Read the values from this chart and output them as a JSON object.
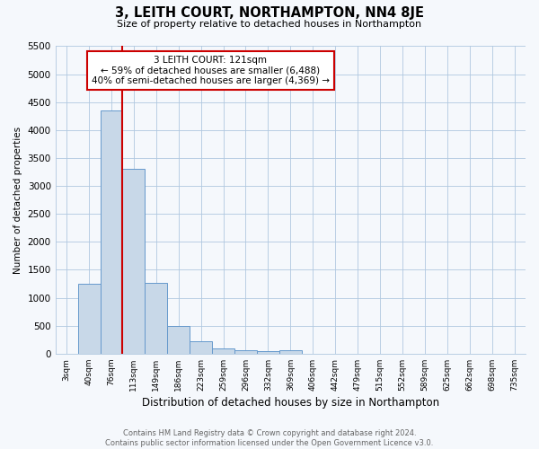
{
  "title": "3, LEITH COURT, NORTHAMPTON, NN4 8JE",
  "subtitle": "Size of property relative to detached houses in Northampton",
  "xlabel": "Distribution of detached houses by size in Northampton",
  "ylabel": "Number of detached properties",
  "footnote": "Contains HM Land Registry data © Crown copyright and database right 2024.\nContains public sector information licensed under the Open Government Licence v3.0.",
  "bar_labels": [
    "3sqm",
    "40sqm",
    "76sqm",
    "113sqm",
    "149sqm",
    "186sqm",
    "223sqm",
    "259sqm",
    "296sqm",
    "332sqm",
    "369sqm",
    "406sqm",
    "442sqm",
    "479sqm",
    "515sqm",
    "552sqm",
    "589sqm",
    "625sqm",
    "662sqm",
    "698sqm",
    "735sqm"
  ],
  "bar_values": [
    0,
    1250,
    4350,
    3300,
    1260,
    490,
    215,
    90,
    60,
    45,
    60,
    0,
    0,
    0,
    0,
    0,
    0,
    0,
    0,
    0,
    0
  ],
  "bar_color": "#c8d8e8",
  "bar_edge_color": "#6699cc",
  "property_line_color": "#cc0000",
  "annotation_text": "3 LEITH COURT: 121sqm\n← 59% of detached houses are smaller (6,488)\n40% of semi-detached houses are larger (4,369) →",
  "annotation_box_color": "#ffffff",
  "annotation_box_edge_color": "#cc0000",
  "ylim": [
    0,
    5500
  ],
  "yticks": [
    0,
    500,
    1000,
    1500,
    2000,
    2500,
    3000,
    3500,
    4000,
    4500,
    5000,
    5500
  ],
  "background_color": "#f5f8fc",
  "grid_color": "#b0c8e0"
}
